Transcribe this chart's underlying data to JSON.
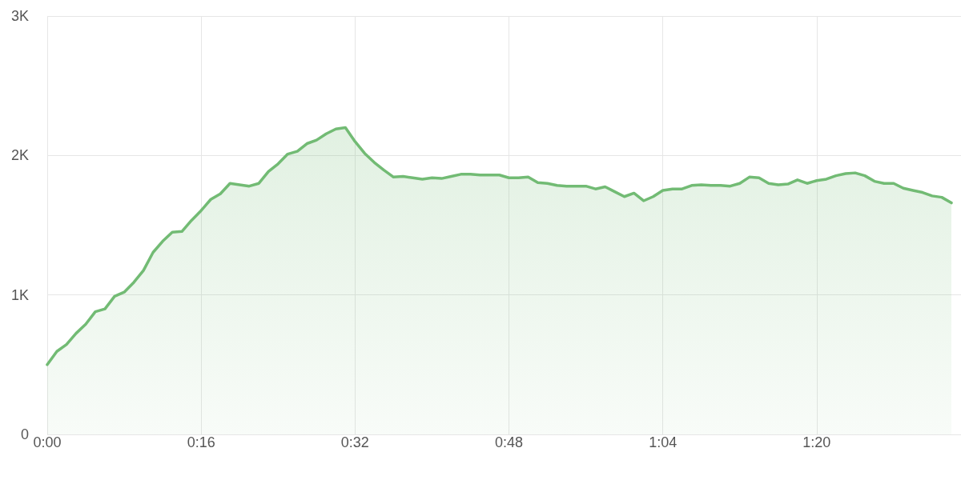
{
  "chart_data": {
    "type": "area",
    "color": "#72bb74",
    "marker": "none",
    "line_style": "solid",
    "grid": true,
    "x": [
      0,
      1,
      2,
      3,
      4,
      5,
      6,
      7,
      8,
      9,
      10,
      11,
      12,
      13,
      14,
      15,
      16,
      17,
      18,
      19,
      20,
      21,
      22,
      23,
      24,
      25,
      26,
      27,
      28,
      29,
      30,
      31,
      32,
      33,
      34,
      35,
      36,
      37,
      38,
      39,
      40,
      41,
      42,
      43,
      44,
      45,
      46,
      47,
      48,
      49,
      50,
      51,
      52,
      53,
      54,
      55,
      56,
      57,
      58,
      59,
      60,
      61,
      62,
      63,
      64,
      65,
      66,
      67,
      68,
      69,
      70,
      71,
      72,
      73,
      74,
      75,
      76,
      77,
      78,
      79,
      80,
      81,
      82,
      83,
      84,
      85,
      86,
      87,
      88,
      89,
      90,
      91,
      92,
      93,
      94
    ],
    "values": [
      500,
      595,
      645,
      725,
      790,
      880,
      900,
      990,
      1020,
      1090,
      1175,
      1305,
      1385,
      1450,
      1455,
      1535,
      1605,
      1685,
      1725,
      1800,
      1790,
      1780,
      1800,
      1885,
      1940,
      2010,
      2030,
      2085,
      2110,
      2155,
      2190,
      2200,
      2100,
      2015,
      1950,
      1895,
      1845,
      1850,
      1840,
      1830,
      1840,
      1835,
      1850,
      1865,
      1865,
      1860,
      1860,
      1860,
      1840,
      1840,
      1845,
      1805,
      1800,
      1785,
      1780,
      1780,
      1780,
      1760,
      1775,
      1740,
      1705,
      1730,
      1675,
      1705,
      1750,
      1760,
      1760,
      1785,
      1790,
      1785,
      1785,
      1780,
      1800,
      1845,
      1840,
      1800,
      1790,
      1795,
      1825,
      1800,
      1820,
      1830,
      1855,
      1870,
      1875,
      1855,
      1815,
      1800,
      1800,
      1765,
      1750,
      1735,
      1710,
      1700,
      1660
    ],
    "xlim": [
      0,
      95
    ],
    "xticks": [
      {
        "value": 0,
        "label": "0:00"
      },
      {
        "value": 16,
        "label": "0:16"
      },
      {
        "value": 32,
        "label": "0:32"
      },
      {
        "value": 48,
        "label": "0:48"
      },
      {
        "value": 64,
        "label": "1:04"
      },
      {
        "value": 80,
        "label": "1:20"
      }
    ],
    "ylim": [
      0,
      3000
    ],
    "yticks": [
      0,
      {
        "value": 1000,
        "label": "1K"
      },
      {
        "value": 2000,
        "label": "2K"
      },
      {
        "value": 3000,
        "label": "3K"
      }
    ]
  }
}
